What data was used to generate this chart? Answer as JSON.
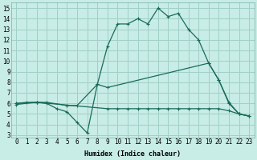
{
  "xlabel": "Humidex (Indice chaleur)",
  "bg_color": "#c8ece6",
  "grid_color": "#a0d0c8",
  "line_color": "#1a6b5a",
  "xlim_min": -0.5,
  "xlim_max": 23.5,
  "ylim_min": 2.8,
  "ylim_max": 15.5,
  "xticks": [
    0,
    1,
    2,
    3,
    4,
    5,
    6,
    7,
    8,
    9,
    10,
    11,
    12,
    13,
    14,
    15,
    16,
    17,
    18,
    19,
    20,
    21,
    22,
    23
  ],
  "yticks": [
    3,
    4,
    5,
    6,
    7,
    8,
    9,
    10,
    11,
    12,
    13,
    14,
    15
  ],
  "line1_x": [
    0,
    1,
    2,
    3,
    5,
    6,
    8,
    9,
    10,
    11,
    12,
    13,
    14,
    15,
    16,
    17,
    18,
    19,
    20,
    21,
    22,
    23
  ],
  "line1_y": [
    6.0,
    6.1,
    6.1,
    6.1,
    5.8,
    5.8,
    7.8,
    11.4,
    13.5,
    13.5,
    14.0,
    13.5,
    15.0,
    14.2,
    14.5,
    13.0,
    12.0,
    9.8,
    8.2,
    6.1,
    5.0,
    4.8
  ],
  "line2_x": [
    0,
    2,
    3,
    4,
    5,
    6,
    7,
    8,
    9,
    19,
    20,
    21,
    22,
    23
  ],
  "line2_y": [
    6.0,
    6.1,
    6.0,
    5.5,
    5.2,
    4.2,
    3.2,
    7.8,
    7.5,
    9.8,
    8.2,
    6.0,
    5.0,
    4.8
  ],
  "line3_x": [
    0,
    2,
    9,
    10,
    11,
    12,
    13,
    14,
    15,
    16,
    17,
    18,
    19,
    20,
    21,
    22,
    23
  ],
  "line3_y": [
    5.9,
    6.1,
    5.5,
    5.5,
    5.5,
    5.5,
    5.5,
    5.5,
    5.5,
    5.5,
    5.5,
    5.5,
    5.5,
    5.5,
    5.3,
    5.0,
    4.8
  ],
  "tick_fontsize": 5.5,
  "xlabel_fontsize": 6.0,
  "linewidth": 0.9,
  "markersize": 3.5
}
